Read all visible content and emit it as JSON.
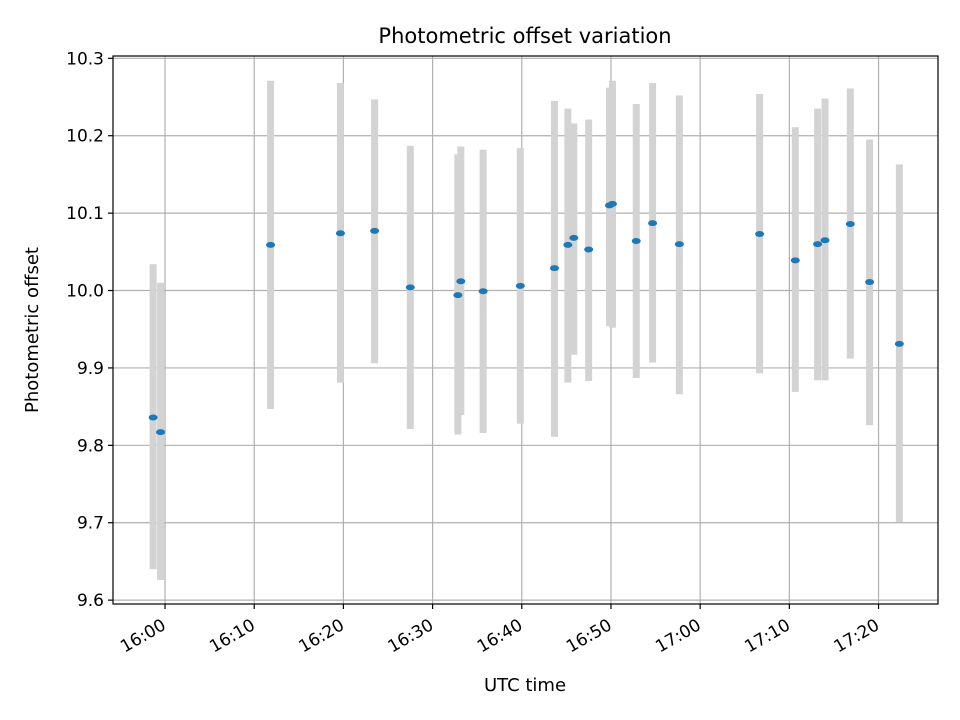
{
  "chart_data": {
    "type": "scatter",
    "title": "Photometric offset variation",
    "xlabel": "UTC time",
    "ylabel": "Photometric offset",
    "x_ticks": [
      "16:00",
      "16:10",
      "16:20",
      "16:30",
      "16:40",
      "16:50",
      "17:00",
      "17:10",
      "17:20"
    ],
    "y_ticks": [
      "9.6",
      "9.7",
      "9.8",
      "9.9",
      "10.0",
      "10.1",
      "10.2",
      "10.3"
    ],
    "xlim": [
      "15:54:10",
      "17:26:40"
    ],
    "ylim": [
      9.595,
      10.303
    ],
    "grid": true,
    "legend": "none",
    "colors": {
      "marker": "#1f77b4",
      "errorbar": "#d3d3d3",
      "grid": "#b0b0b0"
    },
    "points": [
      {
        "x": "15:58:40",
        "y": 9.836,
        "ylow": 9.64,
        "yhigh": 10.034
      },
      {
        "x": "15:59:30",
        "y": 9.817,
        "ylow": 9.626,
        "yhigh": 10.01
      },
      {
        "x": "16:11:50",
        "y": 10.059,
        "ylow": 9.847,
        "yhigh": 10.271
      },
      {
        "x": "16:19:40",
        "y": 10.074,
        "ylow": 9.881,
        "yhigh": 10.268
      },
      {
        "x": "16:23:30",
        "y": 10.077,
        "ylow": 9.906,
        "yhigh": 10.247
      },
      {
        "x": "16:27:30",
        "y": 10.004,
        "ylow": 9.821,
        "yhigh": 10.187
      },
      {
        "x": "16:32:50",
        "y": 9.994,
        "ylow": 9.814,
        "yhigh": 10.176
      },
      {
        "x": "16:33:10",
        "y": 10.012,
        "ylow": 9.839,
        "yhigh": 10.186
      },
      {
        "x": "16:35:40",
        "y": 9.999,
        "ylow": 9.816,
        "yhigh": 10.182
      },
      {
        "x": "16:39:50",
        "y": 10.006,
        "ylow": 9.828,
        "yhigh": 10.184
      },
      {
        "x": "16:43:40",
        "y": 10.029,
        "ylow": 9.811,
        "yhigh": 10.245
      },
      {
        "x": "16:45:10",
        "y": 10.059,
        "ylow": 9.881,
        "yhigh": 10.235
      },
      {
        "x": "16:45:50",
        "y": 10.068,
        "ylow": 9.917,
        "yhigh": 10.216
      },
      {
        "x": "16:47:30",
        "y": 10.053,
        "ylow": 9.883,
        "yhigh": 10.221
      },
      {
        "x": "16:49:50",
        "y": 10.11,
        "ylow": 9.954,
        "yhigh": 10.262
      },
      {
        "x": "16:50:10",
        "y": 10.112,
        "ylow": 9.952,
        "yhigh": 10.271
      },
      {
        "x": "16:52:50",
        "y": 10.064,
        "ylow": 9.887,
        "yhigh": 10.241
      },
      {
        "x": "16:54:40",
        "y": 10.087,
        "ylow": 9.907,
        "yhigh": 10.268
      },
      {
        "x": "16:57:40",
        "y": 10.06,
        "ylow": 9.866,
        "yhigh": 10.252
      },
      {
        "x": "17:06:40",
        "y": 10.073,
        "ylow": 9.893,
        "yhigh": 10.254
      },
      {
        "x": "17:10:40",
        "y": 10.039,
        "ylow": 9.869,
        "yhigh": 10.211
      },
      {
        "x": "17:13:10",
        "y": 10.06,
        "ylow": 9.884,
        "yhigh": 10.235
      },
      {
        "x": "17:14:00",
        "y": 10.065,
        "ylow": 9.884,
        "yhigh": 10.248
      },
      {
        "x": "17:16:50",
        "y": 10.086,
        "ylow": 9.912,
        "yhigh": 10.261
      },
      {
        "x": "17:19:00",
        "y": 10.011,
        "ylow": 9.826,
        "yhigh": 10.195
      },
      {
        "x": "17:22:20",
        "y": 9.931,
        "ylow": 9.701,
        "yhigh": 10.163
      }
    ]
  }
}
